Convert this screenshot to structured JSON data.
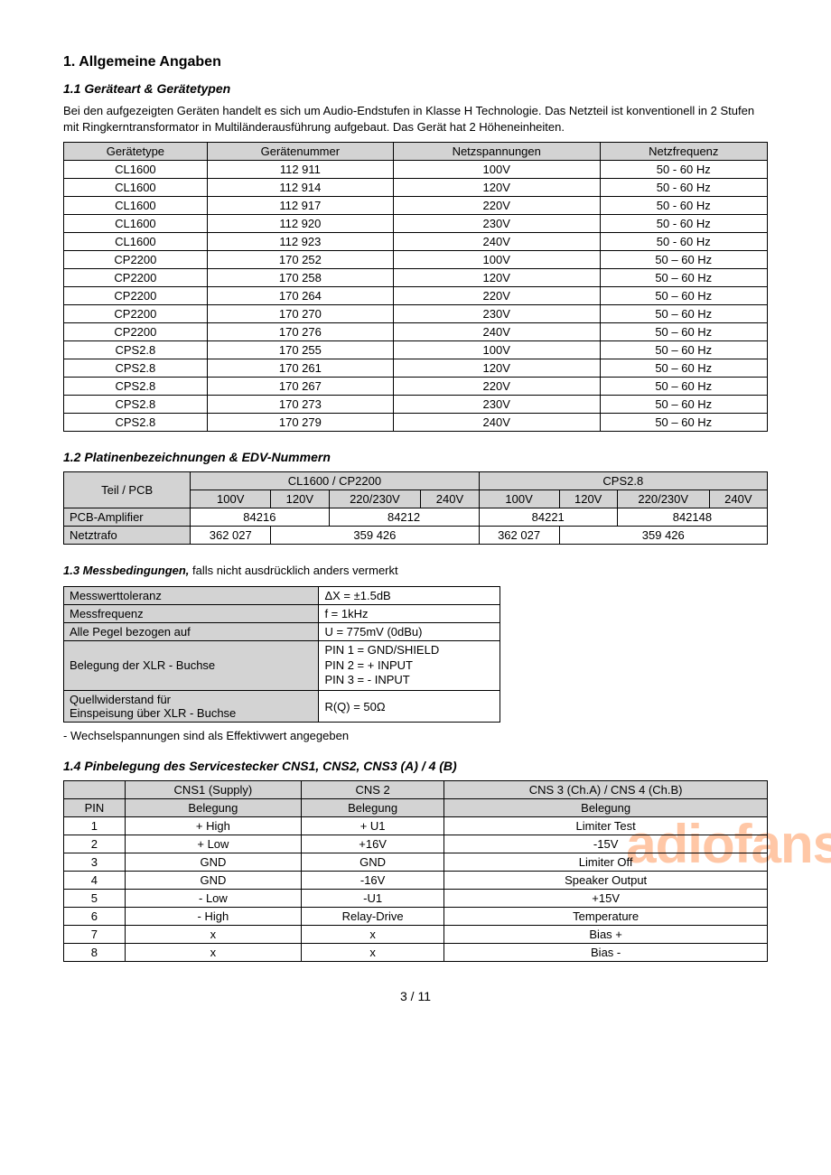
{
  "headings": {
    "h1": "1. Allgemeine Angaben",
    "s1_1": "1.1 Geräteart & Gerätetypen",
    "s1_2": "1.2 Platinenbezeichnungen & EDV-Nummern",
    "s1_3_prefix": "1.3 Messbedingungen,",
    "s1_3_suffix": " falls nicht ausdrücklich anders vermerkt",
    "s1_4": "1.4 Pinbelegung des Servicestecker CNS1, CNS2, CNS3 (A) / 4 (B)"
  },
  "intro": "Bei den aufgezeigten Geräten handelt es sich um Audio-Endstufen in Klasse H Technologie. Das Netzteil ist konventionell in 2 Stufen mit Ringkerntransformator in Multiländerausführung aufgebaut. Das Gerät hat 2 Höheneinheiten.",
  "table1": {
    "headers": [
      "Gerätetype",
      "Gerätenummer",
      "Netzspannungen",
      "Netzfrequenz"
    ],
    "rows": [
      [
        "CL1600",
        "112 911",
        "100V",
        "50 - 60 Hz"
      ],
      [
        "CL1600",
        "112 914",
        "120V",
        "50 - 60 Hz"
      ],
      [
        "CL1600",
        "112 917",
        "220V",
        "50 - 60 Hz"
      ],
      [
        "CL1600",
        "112 920",
        "230V",
        "50 - 60 Hz"
      ],
      [
        "CL1600",
        "112 923",
        "240V",
        "50 - 60 Hz"
      ],
      [
        "CP2200",
        "170 252",
        "100V",
        "50 – 60 Hz"
      ],
      [
        "CP2200",
        "170 258",
        "120V",
        "50 – 60 Hz"
      ],
      [
        "CP2200",
        "170 264",
        "220V",
        "50 – 60 Hz"
      ],
      [
        "CP2200",
        "170 270",
        "230V",
        "50 – 60 Hz"
      ],
      [
        "CP2200",
        "170 276",
        "240V",
        "50 – 60 Hz"
      ],
      [
        "CPS2.8",
        "170 255",
        "100V",
        "50 – 60 Hz"
      ],
      [
        "CPS2.8",
        "170 261",
        "120V",
        "50 – 60 Hz"
      ],
      [
        "CPS2.8",
        "170 267",
        "220V",
        "50 – 60 Hz"
      ],
      [
        "CPS2.8",
        "170 273",
        "230V",
        "50 – 60 Hz"
      ],
      [
        "CPS2.8",
        "170 279",
        "240V",
        "50 – 60 Hz"
      ]
    ]
  },
  "table2": {
    "corner": "Teil / PCB",
    "group1": "CL1600 / CP2200",
    "group2": "CPS2.8",
    "sub": [
      "100V",
      "120V",
      "220/230V",
      "240V",
      "100V",
      "120V",
      "220/230V",
      "240V"
    ],
    "row1_label": "PCB-Amplifier",
    "row1": [
      "84216",
      "84212",
      "84221",
      "842148"
    ],
    "row2_label": "Netztrafo",
    "row2": [
      "362 027",
      "359 426",
      "362 027",
      "359 426"
    ]
  },
  "measure": {
    "r1": [
      "Messwerttoleranz",
      "ΔX = ±1.5dB"
    ],
    "r2": [
      "Messfrequenz",
      "f  = 1kHz"
    ],
    "r3": [
      "Alle Pegel bezogen auf",
      "U = 775mV (0dBu)"
    ],
    "r4_label": "Belegung der XLR - Buchse",
    "r4_pins": [
      "PIN 1  =  GND/SHIELD",
      "PIN 2  =  + INPUT",
      "PIN 3  =  - INPUT"
    ],
    "r5_label_a": "Quellwiderstand für",
    "r5_label_b": "Einspeisung über XLR - Buchse",
    "r5_val": "R(Q) = 50Ω"
  },
  "note": "- Wechselspannungen sind als Effektivwert angegeben",
  "table4": {
    "top": [
      "",
      "CNS1 (Supply)",
      "CNS 2",
      "CNS 3 (Ch.A) / CNS 4 (Ch.B)"
    ],
    "sub": [
      "PIN",
      "Belegung",
      "Belegung",
      "Belegung"
    ],
    "rows": [
      [
        "1",
        "+ High",
        "+ U1",
        "Limiter Test"
      ],
      [
        "2",
        "+ Low",
        "+16V",
        "-15V"
      ],
      [
        "3",
        "GND",
        "GND",
        "Limiter Off"
      ],
      [
        "4",
        "GND",
        "-16V",
        "Speaker Output"
      ],
      [
        "5",
        "- Low",
        "-U1",
        "+15V"
      ],
      [
        "6",
        "- High",
        "Relay-Drive",
        "Temperature"
      ],
      [
        "7",
        "x",
        "x",
        "Bias +"
      ],
      [
        "8",
        "x",
        "x",
        "Bias -"
      ]
    ]
  },
  "watermark": "adiofans.c",
  "pagenum": "3 / 11"
}
